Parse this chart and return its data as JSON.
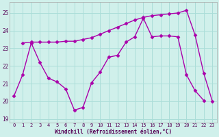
{
  "line1_x": [
    1,
    2,
    3,
    4,
    5,
    6,
    7,
    8,
    9,
    10,
    11,
    12,
    13,
    14,
    15,
    16,
    17,
    18,
    19,
    20,
    21,
    22,
    23
  ],
  "line1_y": [
    23.3,
    23.35,
    23.35,
    23.35,
    23.35,
    23.4,
    23.4,
    23.5,
    23.6,
    23.8,
    24.0,
    24.2,
    24.4,
    24.6,
    24.75,
    24.85,
    24.9,
    24.95,
    25.0,
    25.15,
    23.75,
    21.6,
    20.0
  ],
  "line2_x": [
    0,
    1,
    2,
    3,
    4,
    5,
    6,
    7,
    8,
    9,
    10,
    11,
    12,
    13,
    14,
    15,
    16,
    17,
    18,
    19,
    20,
    21,
    22
  ],
  "line2_y": [
    20.3,
    21.5,
    23.3,
    22.2,
    21.3,
    21.1,
    20.7,
    19.5,
    19.65,
    21.05,
    21.65,
    22.5,
    22.6,
    23.35,
    23.65,
    24.7,
    23.65,
    23.7,
    23.7,
    23.65,
    21.5,
    20.6,
    20.05
  ],
  "line_color": "#aa00aa",
  "background_color": "#d0f0eb",
  "grid_color": "#aaddd8",
  "xlim": [
    -0.5,
    23.5
  ],
  "ylim": [
    18.8,
    25.6
  ],
  "yticks": [
    19,
    20,
    21,
    22,
    23,
    24,
    25
  ],
  "xticks": [
    0,
    1,
    2,
    3,
    4,
    5,
    6,
    7,
    8,
    9,
    10,
    11,
    12,
    13,
    14,
    15,
    16,
    17,
    18,
    19,
    20,
    21,
    22,
    23
  ],
  "xlabel": "Windchill (Refroidissement éolien,°C)",
  "marker": "D",
  "markersize": 2.5,
  "linewidth": 1.0
}
